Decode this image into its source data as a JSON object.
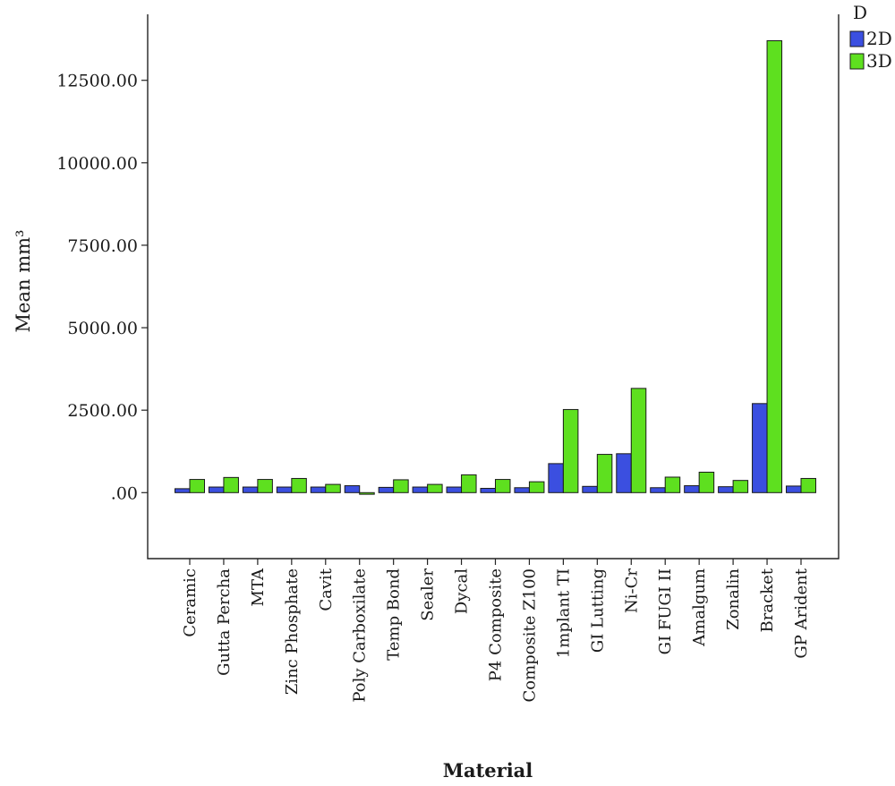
{
  "chart_data": {
    "type": "bar",
    "xlabel": "Material",
    "ylabel": "Mean mm³",
    "ylim": [
      -2000,
      14500
    ],
    "yticks": [
      0,
      2500,
      5000,
      7500,
      10000,
      12500
    ],
    "ytick_labels": [
      ".00",
      "2500.00",
      "5000.00",
      "7500.00",
      "10000.00",
      "12500.00"
    ],
    "grid": false,
    "legend_position": "top-right",
    "legend_title": "D",
    "categories": [
      "Ceramic",
      "Gutta Percha",
      "MTA",
      "Zinc Phosphate",
      "Cavit",
      "Poly Carboxilate",
      "Temp Bond",
      "Sealer",
      "Dycal",
      "P4 Composite",
      "Composite Z100",
      "1mplant TI",
      "GI Lutting",
      "Ni-Cr",
      "GI FUGI II",
      "Amalgum",
      "Zonalin",
      "Bracket",
      "GP Arident"
    ],
    "series": [
      {
        "name": "2D",
        "color": "#3b4fe0",
        "values": [
          120,
          170,
          170,
          170,
          170,
          210,
          160,
          170,
          170,
          130,
          150,
          880,
          190,
          1180,
          150,
          210,
          180,
          2700,
          200
        ]
      },
      {
        "name": "3D",
        "color": "#5ee01f",
        "values": [
          400,
          460,
          400,
          430,
          250,
          -50,
          390,
          250,
          540,
          400,
          330,
          2520,
          1160,
          3160,
          470,
          620,
          370,
          13700,
          430
        ]
      }
    ]
  }
}
